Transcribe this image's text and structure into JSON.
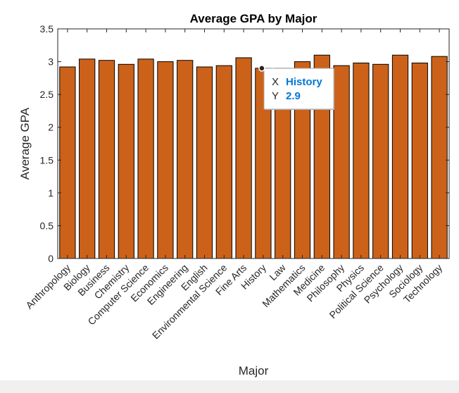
{
  "chart_data": {
    "type": "bar",
    "title": "Average GPA by Major",
    "xlabel": "Major",
    "ylabel": "Average GPA",
    "categories": [
      "Anthropology",
      "Biology",
      "Business",
      "Chemistry",
      "Computer Science",
      "Economics",
      "Engineering",
      "English",
      "Environmental Science",
      "Fine Arts",
      "History",
      "Law",
      "Mathematics",
      "Medicine",
      "Philosophy",
      "Physics",
      "Political Science",
      "Psychology",
      "Sociology",
      "Technology"
    ],
    "values": [
      2.92,
      3.04,
      3.02,
      2.96,
      3.04,
      3.0,
      3.02,
      2.92,
      2.94,
      3.06,
      2.9,
      2.9,
      3.0,
      3.1,
      2.94,
      2.98,
      2.96,
      3.1,
      2.98,
      3.08
    ],
    "ylim": [
      0,
      3.5
    ],
    "yticks": [
      0,
      0.5,
      1,
      1.5,
      2,
      2.5,
      3,
      3.5
    ],
    "ytick_labels": [
      "0",
      "0.5",
      "1",
      "1.5",
      "2",
      "2.5",
      "3",
      "3.5"
    ],
    "grid": false,
    "bar_color": "#cc6219",
    "datatip": {
      "x_label": "X",
      "y_label": "Y",
      "x_value": "History",
      "y_value": "2.9",
      "target_category": "History",
      "value_color": "#0078d7"
    }
  }
}
